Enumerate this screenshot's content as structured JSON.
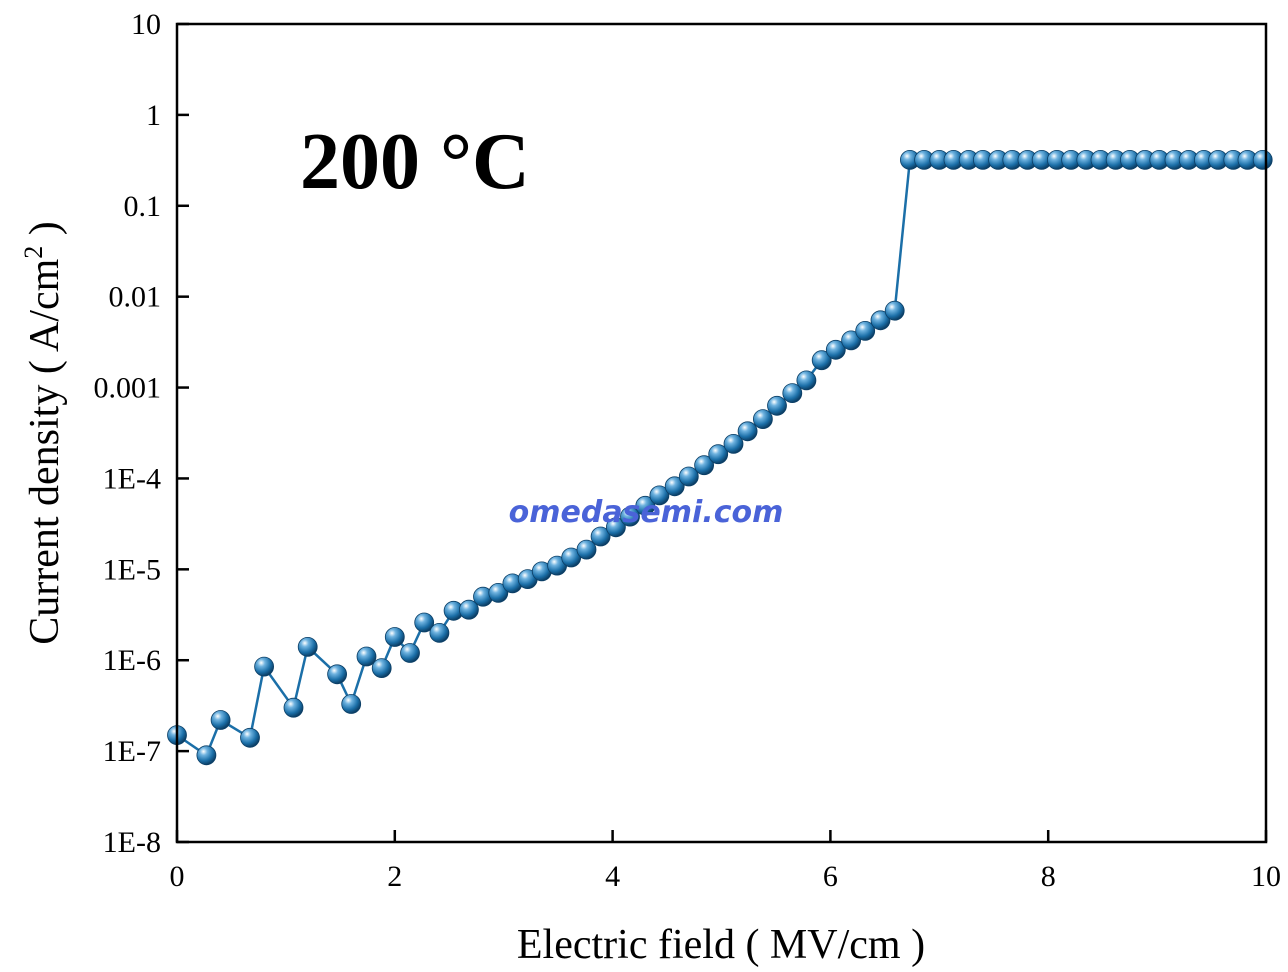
{
  "chart_data": {
    "type": "scatter",
    "title": "",
    "xlabel": "Electric field ( MV/cm )",
    "ylabel": "Current density ( A/cm",
    "ylabel_superscript": "2",
    "ylabel_close": " )",
    "annotation": "200 °C",
    "watermark": "omedasemi.com",
    "xlim": [
      0,
      10
    ],
    "ylim": [
      1e-08,
      10
    ],
    "yscale": "log",
    "x_ticks": [
      {
        "value": 0,
        "label": "0"
      },
      {
        "value": 2,
        "label": "2"
      },
      {
        "value": 4,
        "label": "4"
      },
      {
        "value": 6,
        "label": "6"
      },
      {
        "value": 8,
        "label": "8"
      },
      {
        "value": 10,
        "label": "10"
      }
    ],
    "y_ticks": [
      {
        "value": 1e-08,
        "label": "1E-8"
      },
      {
        "value": 1e-07,
        "label": "1E-7"
      },
      {
        "value": 1e-06,
        "label": "1E-6"
      },
      {
        "value": 1e-05,
        "label": "1E-5"
      },
      {
        "value": 0.0001,
        "label": "1E-4"
      },
      {
        "value": 0.001,
        "label": "0.001"
      },
      {
        "value": 0.01,
        "label": "0.01"
      },
      {
        "value": 0.1,
        "label": "0.1"
      },
      {
        "value": 1,
        "label": "1"
      },
      {
        "value": 10,
        "label": "10"
      }
    ],
    "grid": false,
    "series_color": "#1b6fa8",
    "series": [
      {
        "name": "",
        "marker": "sphere",
        "x": [
          0.0,
          0.27,
          0.4,
          0.67,
          0.8,
          1.07,
          1.2,
          1.47,
          1.6,
          1.74,
          1.88,
          2.0,
          2.14,
          2.27,
          2.41,
          2.54,
          2.68,
          2.81,
          2.95,
          3.08,
          3.22,
          3.35,
          3.49,
          3.62,
          3.76,
          3.89,
          4.03,
          4.16,
          4.3,
          4.43,
          4.57,
          4.7,
          4.84,
          4.97,
          5.11,
          5.24,
          5.38,
          5.51,
          5.65,
          5.78,
          5.92,
          6.05,
          6.19,
          6.32,
          6.46,
          6.59,
          6.73,
          6.86,
          7.0,
          7.13,
          7.27,
          7.4,
          7.54,
          7.67,
          7.81,
          7.94,
          8.08,
          8.21,
          8.35,
          8.48,
          8.62,
          8.75,
          8.89,
          9.02,
          9.16,
          9.29,
          9.43,
          9.56,
          9.7,
          9.83,
          9.97
        ],
        "y": [
          1.5e-07,
          9e-08,
          2.2e-07,
          1.4e-07,
          8.5e-07,
          3e-07,
          1.4e-06,
          7e-07,
          3.3e-07,
          1.1e-06,
          8.2e-07,
          1.8e-06,
          1.2e-06,
          2.6e-06,
          2e-06,
          3.5e-06,
          3.6e-06,
          5e-06,
          5.5e-06,
          7e-06,
          7.8e-06,
          9.5e-06,
          1.1e-05,
          1.35e-05,
          1.65e-05,
          2.3e-05,
          2.9e-05,
          3.8e-05,
          5e-05,
          6.5e-05,
          8.2e-05,
          0.000105,
          0.00014,
          0.000185,
          0.00024,
          0.00033,
          0.00045,
          0.00063,
          0.00087,
          0.0012,
          0.002,
          0.0026,
          0.0033,
          0.0042,
          0.0055,
          0.007,
          0.32,
          0.32,
          0.32,
          0.32,
          0.32,
          0.32,
          0.32,
          0.32,
          0.32,
          0.32,
          0.32,
          0.32,
          0.32,
          0.32,
          0.32,
          0.32,
          0.32,
          0.32,
          0.32,
          0.32,
          0.32,
          0.32,
          0.32,
          0.32,
          0.32
        ]
      }
    ]
  }
}
